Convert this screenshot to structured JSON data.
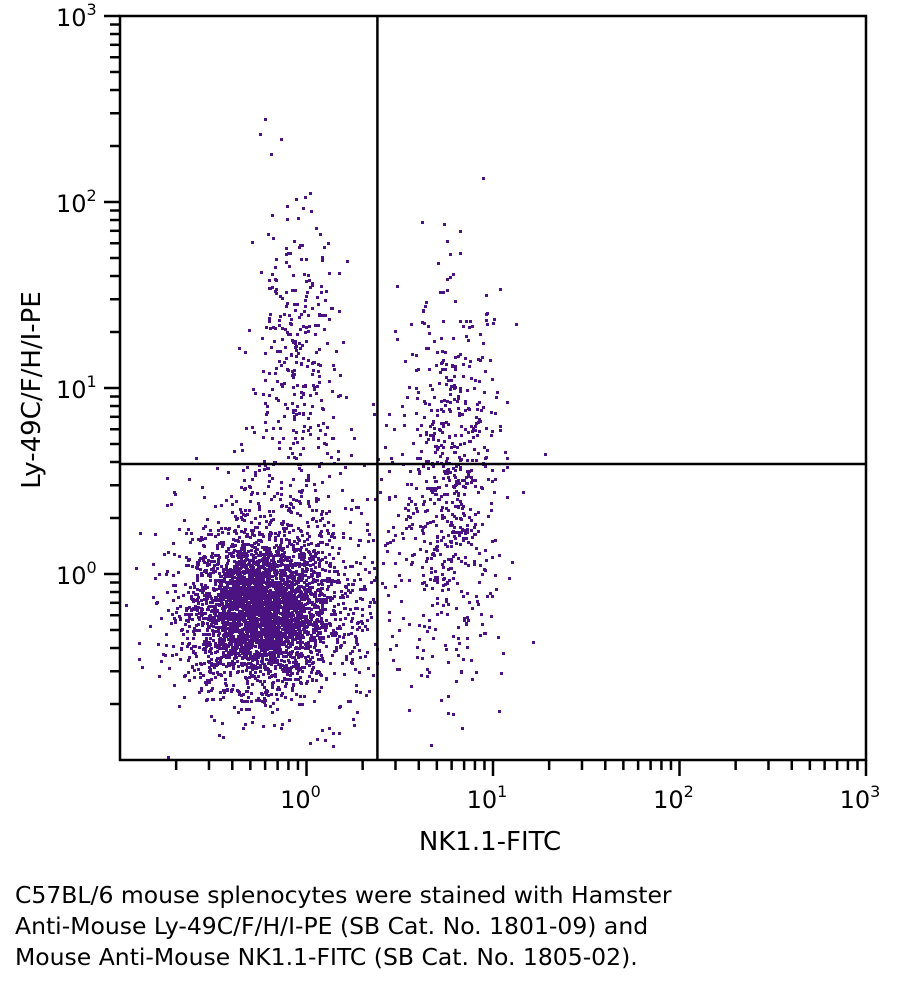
{
  "chart_data": {
    "type": "scatter",
    "xlabel": "NK1.1-FITC",
    "ylabel": "Ly-49C/F/H/I-PE",
    "xscale": "log",
    "yscale": "log",
    "xlim": [
      0.1,
      1000
    ],
    "ylim": [
      0.1,
      1000
    ],
    "xticks": [
      {
        "value": 1,
        "base": "10",
        "exp": "0"
      },
      {
        "value": 10,
        "base": "10",
        "exp": "1"
      },
      {
        "value": 100,
        "base": "10",
        "exp": "2"
      },
      {
        "value": 1000,
        "base": "10",
        "exp": "3"
      }
    ],
    "yticks": [
      {
        "value": 1,
        "base": "10",
        "exp": "0"
      },
      {
        "value": 10,
        "base": "10",
        "exp": "1"
      },
      {
        "value": 100,
        "base": "10",
        "exp": "2"
      },
      {
        "value": 1000,
        "base": "10",
        "exp": "3"
      }
    ],
    "quadrant_gates": {
      "x": 2.4,
      "y": 3.9
    },
    "grid": false,
    "point_color": "#4b1382",
    "populations": [
      {
        "x_median": 0.56,
        "y_median": 0.63,
        "x_log_sd": 0.19,
        "y_log_sd": 0.2,
        "count": 3200
      },
      {
        "x_median": 0.85,
        "y_median": 0.9,
        "x_log_sd": 0.3,
        "y_log_sd": 0.35,
        "count": 700
      },
      {
        "x_median": 0.85,
        "y_median": 12,
        "x_log_sd": 0.12,
        "y_log_sd": 0.45,
        "count": 330
      },
      {
        "x_median": 6,
        "y_median": 3,
        "x_log_sd": 0.14,
        "y_log_sd": 0.5,
        "count": 650
      }
    ]
  },
  "caption": [
    "C57BL/6 mouse splenocytes were stained with Hamster",
    "Anti-Mouse Ly-49C/F/H/I-PE (SB Cat. No. 1801-09) and",
    "Mouse Anti-Mouse NK1.1-FITC (SB Cat. No. 1805-02)."
  ]
}
